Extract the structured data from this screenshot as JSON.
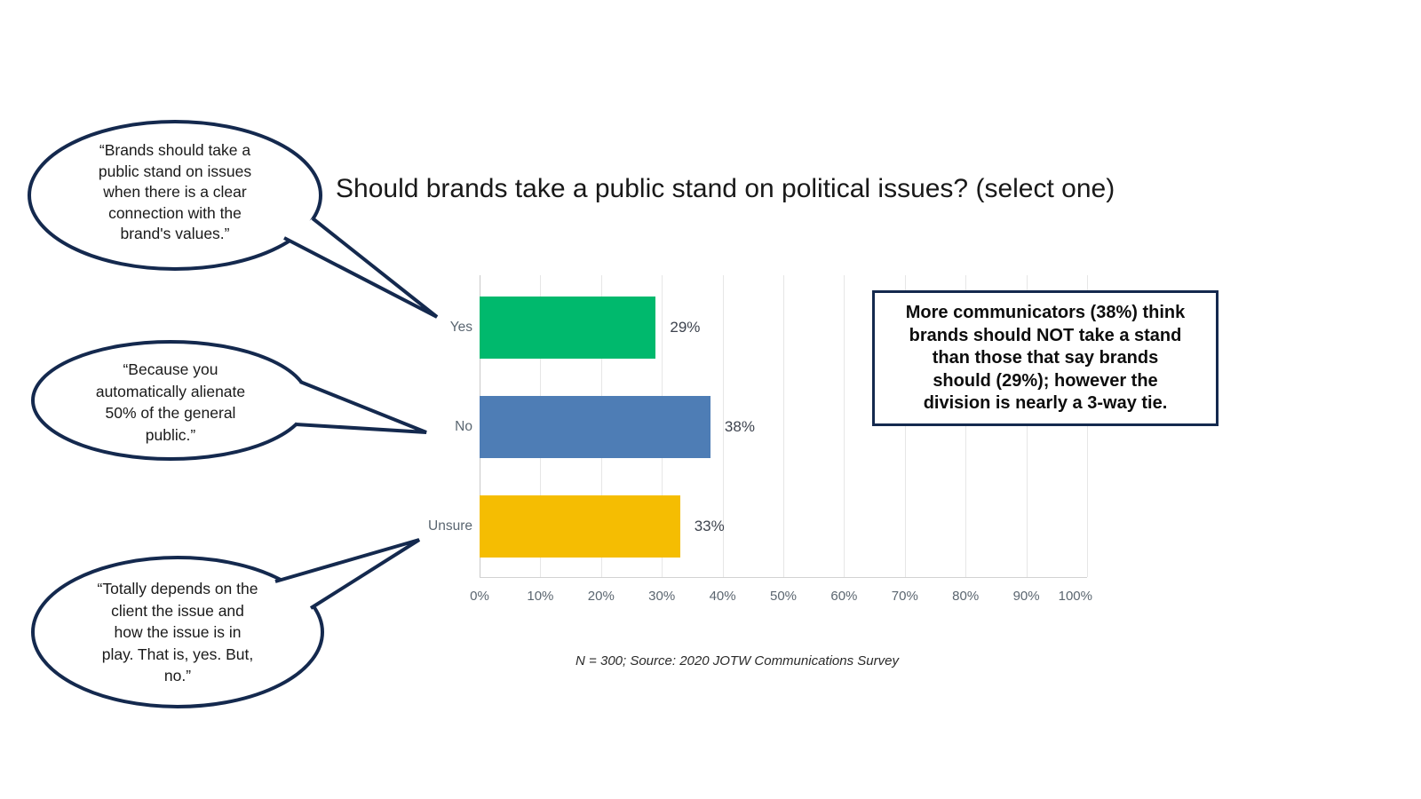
{
  "title": "Should brands take a public stand on political issues? (select one)",
  "chart_data": {
    "type": "bar",
    "orientation": "horizontal",
    "title": "Should brands take a public stand on political issues? (select one)",
    "categories": [
      "Yes",
      "No",
      "Unsure"
    ],
    "values": [
      29,
      38,
      33
    ],
    "value_labels": [
      "29%",
      "38%",
      "33%"
    ],
    "bar_colors": [
      "#00B96D",
      "#4E7DB5",
      "#F5BD02"
    ],
    "xlim": [
      0,
      100
    ],
    "xticks": [
      0,
      10,
      20,
      30,
      40,
      50,
      60,
      70,
      80,
      90,
      100
    ],
    "xtick_labels": [
      "0%",
      "10%",
      "20%",
      "30%",
      "40%",
      "50%",
      "60%",
      "70%",
      "80%",
      "90%",
      "100%"
    ],
    "grid": true,
    "legend": false,
    "note": "N = 300; Source: 2020 JOTW Communications Survey"
  },
  "annotation_box": {
    "text": "More communicators (38%) think\nbrands should NOT take a stand\nthan those that say brands\nshould (29%); however the\ndivision is nearly a 3-way tie."
  },
  "speech_bubbles": [
    {
      "target": "Yes",
      "text": "“Brands should take a\npublic stand on issues\nwhen there is a clear\nconnection with the\nbrand's values.”"
    },
    {
      "target": "No",
      "text": "“Because you\nautomatically alienate\n50% of the general\npublic.”"
    },
    {
      "target": "Unsure",
      "text": "“Totally depends on the\nclient the issue and\nhow the issue is in\nplay. That is, yes. But,\nno.”"
    }
  ],
  "colors": {
    "navy_outline": "#14294E",
    "bar_yes_green": "#00B96D",
    "bar_no_blue": "#4E7DB5",
    "bar_unsure_yellow": "#F5BD02"
  }
}
